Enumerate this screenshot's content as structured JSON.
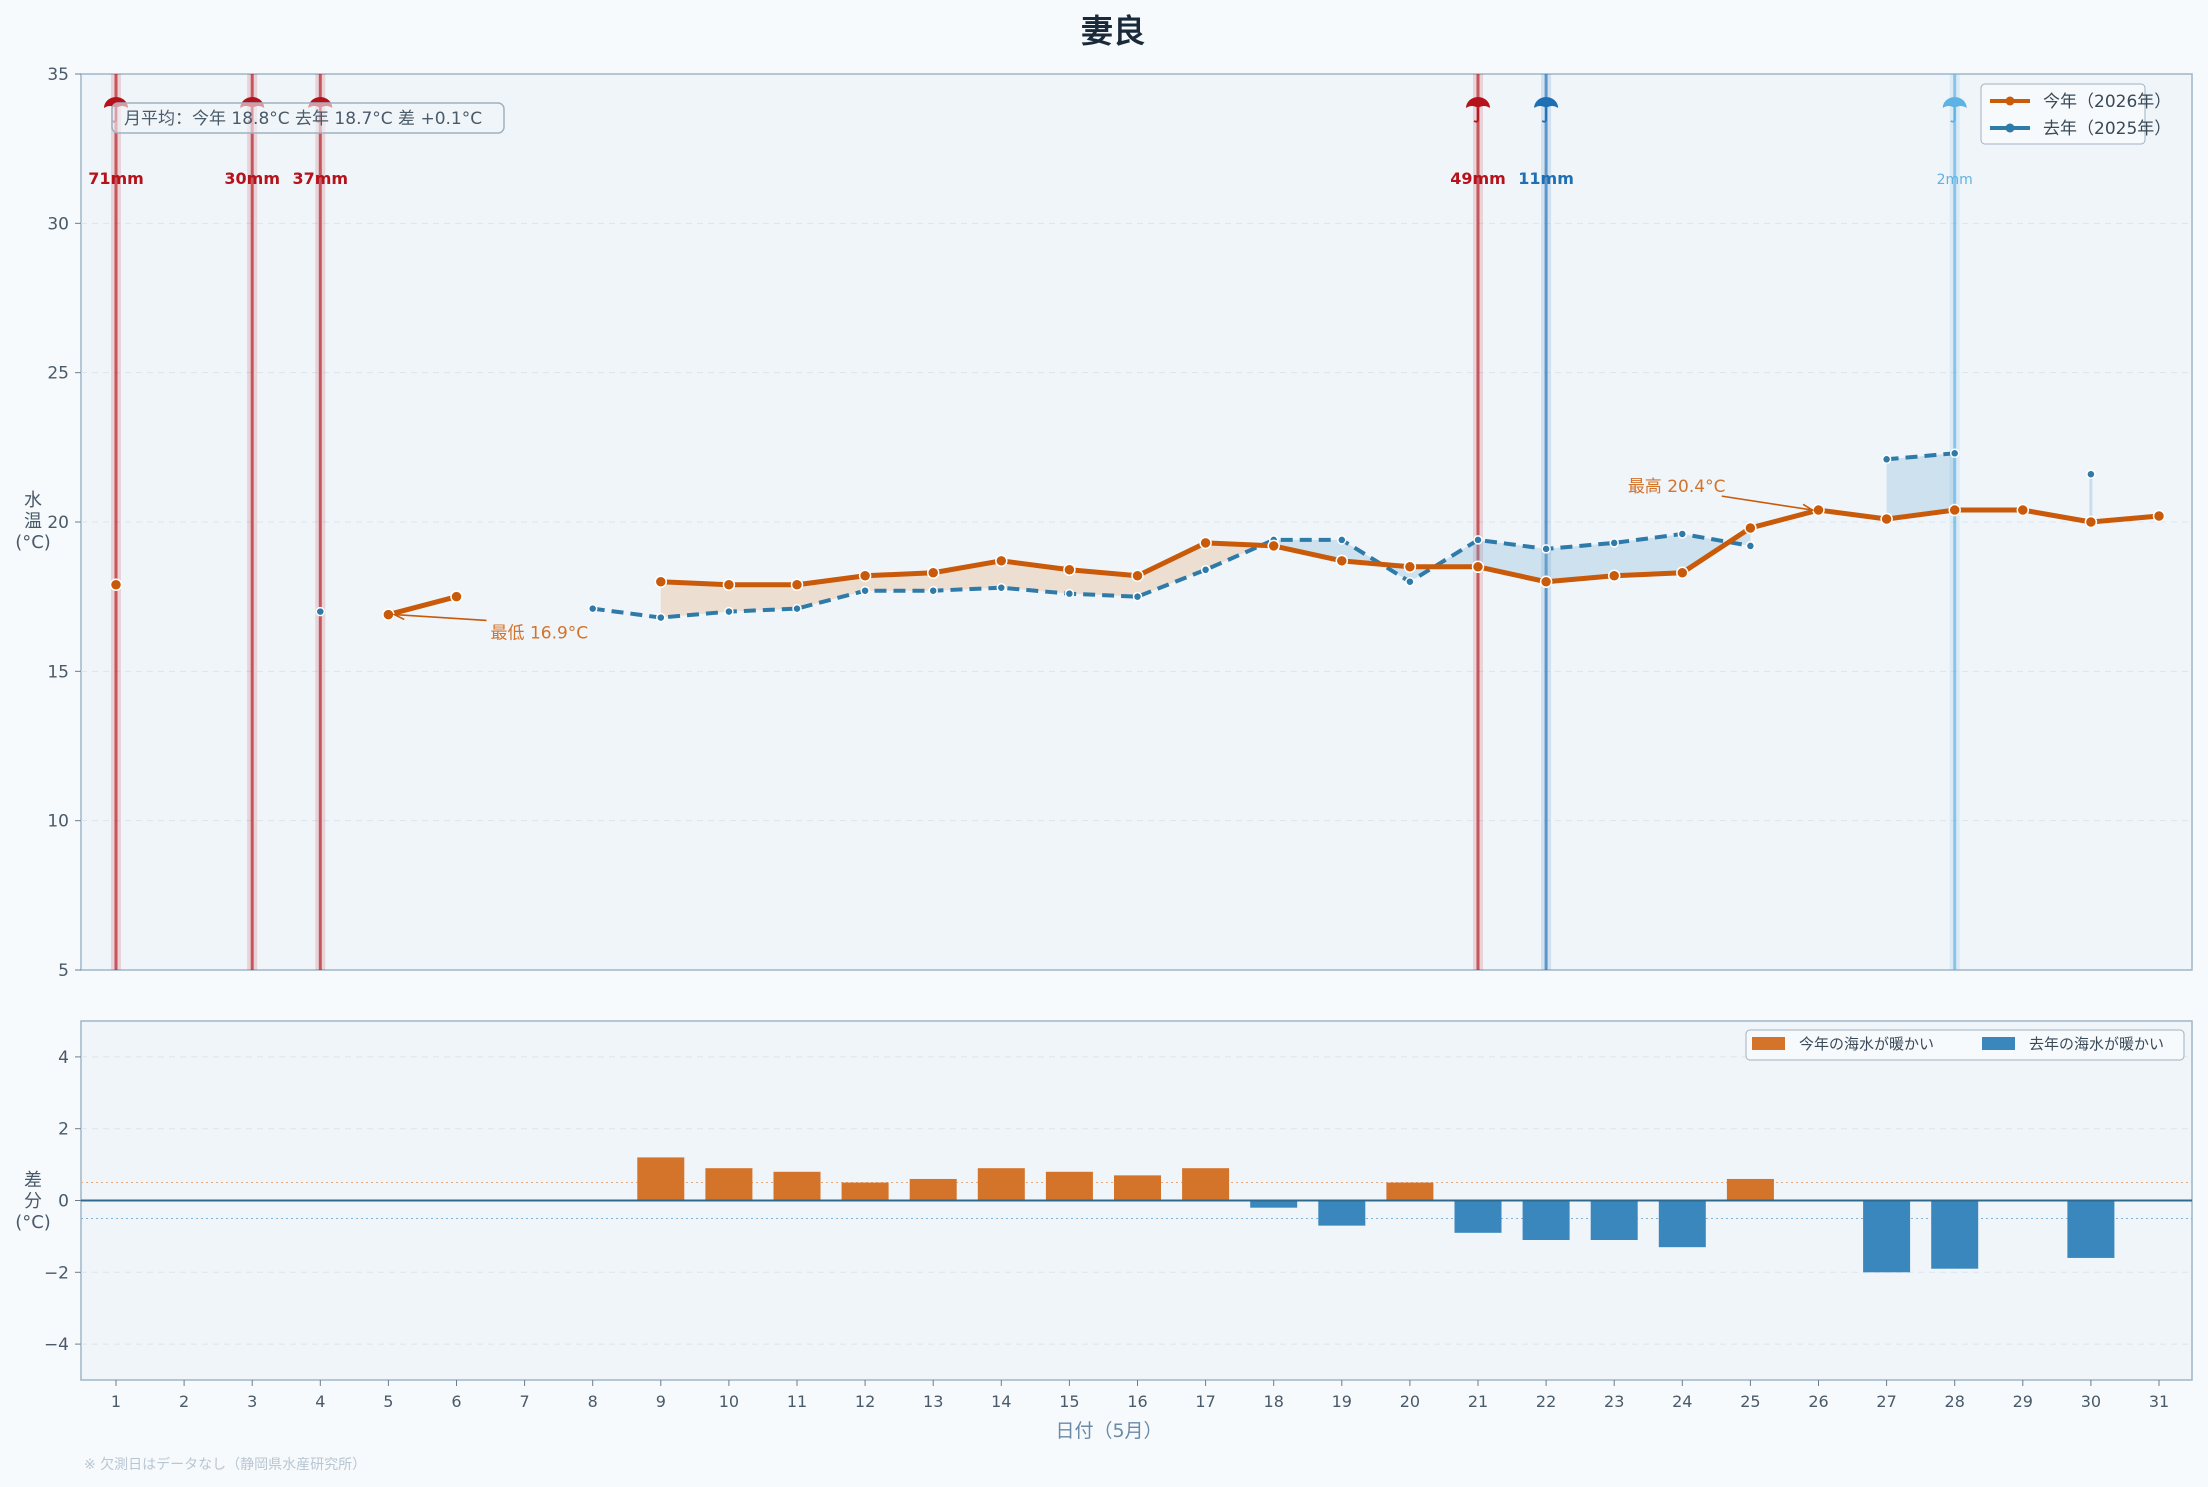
{
  "chart_data": [
    {
      "type": "line",
      "title": "妻良",
      "ylabel": "水\n温\n(°C)",
      "ylim": [
        5,
        35
      ],
      "yticks": [
        5,
        10,
        15,
        20,
        25,
        30,
        35
      ],
      "x": [
        1,
        2,
        3,
        4,
        5,
        6,
        7,
        8,
        9,
        10,
        11,
        12,
        13,
        14,
        15,
        16,
        17,
        18,
        19,
        20,
        21,
        22,
        23,
        24,
        25,
        26,
        27,
        28,
        29,
        30,
        31
      ],
      "series": [
        {
          "name": "今年（2026年）",
          "color": "#c85a0a",
          "style": "solid",
          "values": [
            17.9,
            null,
            null,
            null,
            16.9,
            17.5,
            null,
            null,
            18.0,
            17.9,
            17.9,
            18.2,
            18.3,
            18.7,
            18.4,
            18.2,
            19.3,
            19.2,
            18.7,
            18.5,
            18.5,
            18.0,
            18.2,
            18.3,
            19.8,
            20.4,
            20.1,
            20.4,
            20.4,
            20.0,
            20.2
          ]
        },
        {
          "name": "去年（2025年）",
          "color": "#2e7aa8",
          "style": "dashed",
          "values": [
            null,
            null,
            null,
            17.0,
            null,
            null,
            null,
            17.1,
            16.8,
            17.0,
            17.1,
            17.7,
            17.7,
            17.8,
            17.6,
            17.5,
            18.4,
            19.4,
            19.4,
            18.0,
            19.4,
            19.1,
            19.3,
            19.6,
            19.2,
            null,
            22.1,
            22.3,
            null,
            21.6,
            null
          ]
        }
      ],
      "rain": [
        {
          "day": 1,
          "label": "71mm",
          "year": "2026",
          "color": "#b5121b"
        },
        {
          "day": 3,
          "label": "30mm",
          "year": "2026",
          "color": "#b5121b"
        },
        {
          "day": 4,
          "label": "37mm",
          "year": "2026",
          "color": "#b5121b"
        },
        {
          "day": 21,
          "label": "49mm",
          "year": "2026",
          "color": "#b5121b"
        },
        {
          "day": 22,
          "label": "11mm",
          "year": "2025",
          "color": "#1f6fb5"
        },
        {
          "day": 28,
          "label": "2mm",
          "year": "2025",
          "color": "#5eb2e4"
        }
      ],
      "annotations": [
        {
          "text": "最低 16.9°C",
          "day": 5,
          "value": 16.9,
          "text_day": 6.5,
          "text_value": 16.1
        },
        {
          "text": "最高 20.4°C",
          "day": 26,
          "value": 20.4,
          "text_day": 23.2,
          "text_value": 21.0
        }
      ],
      "monthly_average": "月平均：今年 18.8°C  去年 18.7°C  差 +0.1°C",
      "legend": "top-right",
      "grid": true,
      "rain_icon": "umbrella-icon"
    },
    {
      "type": "bar",
      "ylabel": "差\n分\n(°C)",
      "xlabel": "日付（5月）",
      "ylim": [
        -5,
        5
      ],
      "yticks": [
        -4,
        -2,
        0,
        2,
        4
      ],
      "categories": [
        1,
        2,
        3,
        4,
        5,
        6,
        7,
        8,
        9,
        10,
        11,
        12,
        13,
        14,
        15,
        16,
        17,
        18,
        19,
        20,
        21,
        22,
        23,
        24,
        25,
        26,
        27,
        28,
        29,
        30,
        31
      ],
      "values": [
        null,
        null,
        null,
        null,
        null,
        null,
        null,
        null,
        1.2,
        0.9,
        0.8,
        0.5,
        0.6,
        0.9,
        0.8,
        0.7,
        0.9,
        -0.2,
        -0.7,
        0.5,
        -0.9,
        -1.1,
        -1.1,
        -1.3,
        0.6,
        null,
        -2.0,
        -1.9,
        null,
        -1.6,
        null
      ],
      "positive_label": "今年の海水が暖かい",
      "negative_label": "去年の海水が暖かい",
      "positive_color": "#d4732a",
      "negative_color": "#3a87bd",
      "legend": "top-right",
      "grid": true
    }
  ],
  "footnote": "※ 欠測日はデータなし（静岡県水産研究所）"
}
